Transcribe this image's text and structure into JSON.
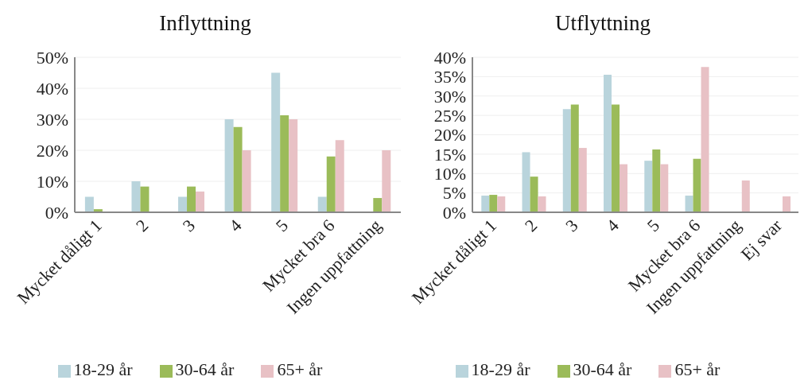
{
  "chart_data": [
    {
      "type": "bar",
      "title": "Inflyttning",
      "categories": [
        "Mycket dåligt 1",
        "2",
        "3",
        "4",
        "5",
        "Mycket bra 6",
        "Ingen uppfattning"
      ],
      "series": [
        {
          "name": "18-29 år",
          "color": "#b9d4dc",
          "values": [
            5,
            10,
            5,
            30,
            45,
            5,
            null
          ]
        },
        {
          "name": "30-64 år",
          "color": "#9bbb59",
          "values": [
            1,
            8.3,
            8.3,
            27.5,
            31.3,
            18,
            4.6
          ]
        },
        {
          "name": "65+ år",
          "color": "#e8c1c5",
          "values": [
            null,
            null,
            6.7,
            20,
            30,
            23.3,
            20
          ]
        }
      ],
      "ylim": [
        0,
        50
      ],
      "yticks": [
        {
          "value": 0,
          "label": "0%"
        },
        {
          "value": 10,
          "label": "10%"
        },
        {
          "value": 20,
          "label": "20%"
        },
        {
          "value": 30,
          "label": "30%"
        },
        {
          "value": 40,
          "label": "40%"
        },
        {
          "value": 50,
          "label": "50%"
        }
      ],
      "grid": "y",
      "legend": "bottom"
    },
    {
      "type": "bar",
      "title": "Utflyttning",
      "categories": [
        "Mycket dåligt 1",
        "2",
        "3",
        "4",
        "5",
        "Mycket bra 6",
        "Ingen uppfattning",
        "Ej svar"
      ],
      "series": [
        {
          "name": "18-29 år",
          "color": "#b9d4dc",
          "values": [
            4.3,
            15.5,
            26.6,
            35.5,
            13.3,
            4.3,
            null,
            null
          ]
        },
        {
          "name": "30-64 år",
          "color": "#9bbb59",
          "values": [
            4.5,
            9.2,
            27.8,
            27.8,
            16.2,
            13.8,
            null,
            null
          ]
        },
        {
          "name": "65+ år",
          "color": "#e8c1c5",
          "values": [
            4.1,
            4.1,
            16.6,
            12.4,
            12.4,
            37.5,
            8.2,
            4.1
          ]
        }
      ],
      "ylim": [
        0,
        40
      ],
      "yticks": [
        {
          "value": 0,
          "label": "0%"
        },
        {
          "value": 5,
          "label": "5%"
        },
        {
          "value": 10,
          "label": "10%"
        },
        {
          "value": 15,
          "label": "15%"
        },
        {
          "value": 20,
          "label": "20%"
        },
        {
          "value": 25,
          "label": "25%"
        },
        {
          "value": 30,
          "label": "30%"
        },
        {
          "value": 35,
          "label": "35%"
        },
        {
          "value": 40,
          "label": "40%"
        }
      ],
      "grid": "y",
      "legend": "bottom"
    }
  ]
}
